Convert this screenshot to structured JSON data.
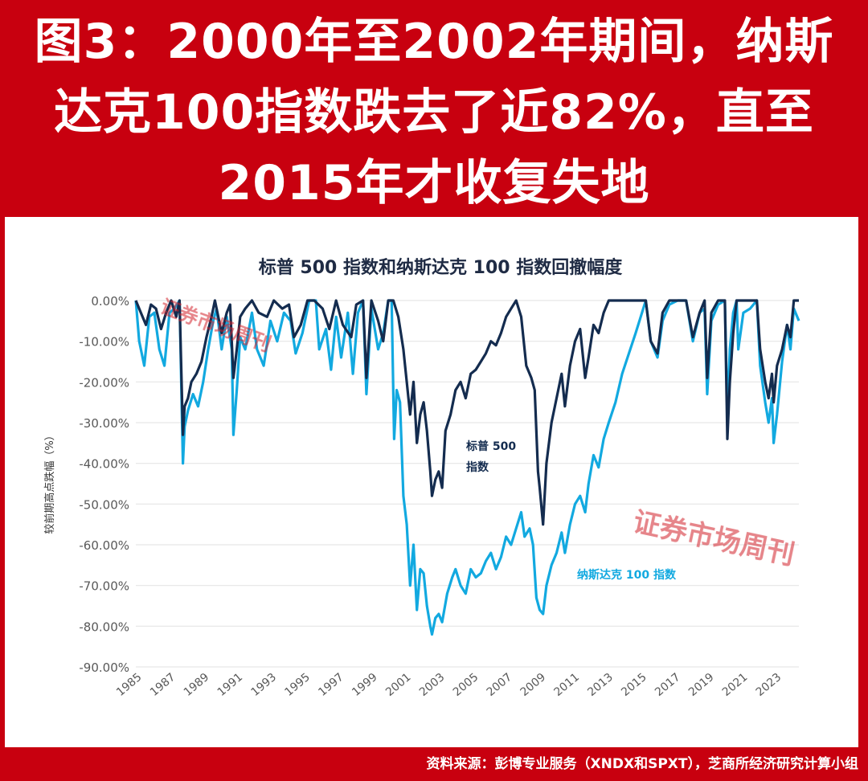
{
  "headline": {
    "line1": "图3：2000年至2002年期间，纳斯",
    "line2": "达克100指数跌去了近82%，直至",
    "line3": "2015年才收复失地"
  },
  "source": "资料来源：彭博专业服务（XNDX和SPXT），芝商所经济研究计算小组",
  "watermark": "证券市场周刊",
  "colors": {
    "frame": "#c8000f",
    "sp500": "#142c4f",
    "nasdaq": "#12a9e0",
    "grid": "#e6e6e6",
    "axis_text": "#595959"
  },
  "chart_data": {
    "type": "line",
    "title": "标普 500 指数和纳斯达克 100 指数回撤幅度",
    "ylabel": "较前期高点跌幅（%）",
    "xlabel": "",
    "ylim": [
      -90,
      0
    ],
    "xlim": [
      1985,
      2024.4
    ],
    "grid": true,
    "y_ticks": [
      "0.00%",
      "-10.00%",
      "-20.00%",
      "-30.00%",
      "-40.00%",
      "-50.00%",
      "-60.00%",
      "-70.00%",
      "-80.00%",
      "-90.00%"
    ],
    "x_ticks": [
      "1985",
      "1987",
      "1989",
      "1991",
      "1993",
      "1995",
      "1997",
      "1999",
      "2001",
      "2003",
      "2005",
      "2007",
      "2009",
      "2011",
      "2013",
      "2015",
      "2017",
      "2019",
      "2021",
      "2023"
    ],
    "series": [
      {
        "name": "标普 500 指数",
        "label_lines": [
          "标普 500",
          "指数"
        ],
        "color": "#142c4f",
        "points": [
          [
            1985.0,
            0
          ],
          [
            1985.3,
            -3
          ],
          [
            1985.6,
            -6
          ],
          [
            1985.9,
            -1
          ],
          [
            1986.2,
            -2
          ],
          [
            1986.5,
            -7
          ],
          [
            1986.8,
            -3
          ],
          [
            1987.1,
            0
          ],
          [
            1987.4,
            -4
          ],
          [
            1987.6,
            0
          ],
          [
            1987.8,
            -33
          ],
          [
            1987.9,
            -26
          ],
          [
            1988.1,
            -24
          ],
          [
            1988.3,
            -20
          ],
          [
            1988.6,
            -18
          ],
          [
            1988.9,
            -15
          ],
          [
            1989.2,
            -9
          ],
          [
            1989.5,
            -4
          ],
          [
            1989.7,
            0
          ],
          [
            1989.9,
            -4
          ],
          [
            1990.1,
            -8
          ],
          [
            1990.4,
            -3
          ],
          [
            1990.6,
            -1
          ],
          [
            1990.8,
            -19
          ],
          [
            1991.0,
            -12
          ],
          [
            1991.2,
            -4
          ],
          [
            1991.5,
            -2
          ],
          [
            1991.9,
            0
          ],
          [
            1992.3,
            -3
          ],
          [
            1992.8,
            -4
          ],
          [
            1993.2,
            0
          ],
          [
            1993.7,
            -2
          ],
          [
            1994.1,
            -1
          ],
          [
            1994.4,
            -9
          ],
          [
            1994.8,
            -6
          ],
          [
            1995.2,
            0
          ],
          [
            1995.6,
            0
          ],
          [
            1996.1,
            -2
          ],
          [
            1996.5,
            -7
          ],
          [
            1996.9,
            0
          ],
          [
            1997.3,
            -6
          ],
          [
            1997.8,
            -9
          ],
          [
            1998.1,
            -1
          ],
          [
            1998.5,
            0
          ],
          [
            1998.7,
            -19
          ],
          [
            1999.0,
            0
          ],
          [
            1999.4,
            -5
          ],
          [
            1999.7,
            -10
          ],
          [
            2000.0,
            0
          ],
          [
            2000.3,
            0
          ],
          [
            2000.6,
            -4
          ],
          [
            2000.9,
            -12
          ],
          [
            2001.1,
            -20
          ],
          [
            2001.3,
            -28
          ],
          [
            2001.5,
            -20
          ],
          [
            2001.7,
            -35
          ],
          [
            2001.9,
            -28
          ],
          [
            2002.1,
            -25
          ],
          [
            2002.3,
            -32
          ],
          [
            2002.5,
            -42
          ],
          [
            2002.6,
            -48
          ],
          [
            2002.8,
            -44
          ],
          [
            2003.0,
            -42
          ],
          [
            2003.2,
            -46
          ],
          [
            2003.4,
            -32
          ],
          [
            2003.7,
            -28
          ],
          [
            2004.0,
            -22
          ],
          [
            2004.3,
            -20
          ],
          [
            2004.6,
            -24
          ],
          [
            2004.9,
            -18
          ],
          [
            2005.2,
            -17
          ],
          [
            2005.5,
            -15
          ],
          [
            2005.8,
            -13
          ],
          [
            2006.1,
            -10
          ],
          [
            2006.4,
            -11
          ],
          [
            2006.7,
            -8
          ],
          [
            2007.0,
            -4
          ],
          [
            2007.3,
            -2
          ],
          [
            2007.6,
            0
          ],
          [
            2007.9,
            -4
          ],
          [
            2008.2,
            -16
          ],
          [
            2008.5,
            -19
          ],
          [
            2008.7,
            -22
          ],
          [
            2008.9,
            -42
          ],
          [
            2009.0,
            -46
          ],
          [
            2009.2,
            -55
          ],
          [
            2009.4,
            -40
          ],
          [
            2009.7,
            -30
          ],
          [
            2010.0,
            -24
          ],
          [
            2010.3,
            -18
          ],
          [
            2010.5,
            -26
          ],
          [
            2010.8,
            -16
          ],
          [
            2011.1,
            -10
          ],
          [
            2011.4,
            -7
          ],
          [
            2011.7,
            -19
          ],
          [
            2011.9,
            -14
          ],
          [
            2012.2,
            -6
          ],
          [
            2012.5,
            -8
          ],
          [
            2012.8,
            -3
          ],
          [
            2013.1,
            0
          ],
          [
            2013.5,
            0
          ],
          [
            2013.9,
            0
          ],
          [
            2014.3,
            0
          ],
          [
            2014.8,
            0
          ],
          [
            2015.3,
            0
          ],
          [
            2015.6,
            -10
          ],
          [
            2016.0,
            -13
          ],
          [
            2016.3,
            -3
          ],
          [
            2016.7,
            0
          ],
          [
            2017.2,
            0
          ],
          [
            2017.7,
            0
          ],
          [
            2018.1,
            -9
          ],
          [
            2018.5,
            -3
          ],
          [
            2018.8,
            0
          ],
          [
            2018.95,
            -19
          ],
          [
            2019.2,
            -3
          ],
          [
            2019.6,
            0
          ],
          [
            2020.0,
            0
          ],
          [
            2020.15,
            -34
          ],
          [
            2020.3,
            -20
          ],
          [
            2020.5,
            -8
          ],
          [
            2020.7,
            0
          ],
          [
            2021.1,
            0
          ],
          [
            2021.5,
            0
          ],
          [
            2021.9,
            0
          ],
          [
            2022.1,
            -12
          ],
          [
            2022.4,
            -20
          ],
          [
            2022.6,
            -24
          ],
          [
            2022.8,
            -18
          ],
          [
            2022.9,
            -25
          ],
          [
            2023.1,
            -16
          ],
          [
            2023.4,
            -12
          ],
          [
            2023.7,
            -6
          ],
          [
            2023.9,
            -9
          ],
          [
            2024.1,
            0
          ],
          [
            2024.4,
            0
          ]
        ]
      },
      {
        "name": "纳斯达克 100 指数",
        "label_lines": [
          "纳斯达克 100 指数"
        ],
        "color": "#12a9e0",
        "points": [
          [
            1985.0,
            0
          ],
          [
            1985.2,
            -10
          ],
          [
            1985.5,
            -16
          ],
          [
            1985.8,
            -4
          ],
          [
            1986.1,
            -3
          ],
          [
            1986.4,
            -12
          ],
          [
            1986.7,
            -16
          ],
          [
            1987.0,
            -3
          ],
          [
            1987.3,
            -2
          ],
          [
            1987.6,
            0
          ],
          [
            1987.8,
            -40
          ],
          [
            1987.9,
            -31
          ],
          [
            1988.1,
            -27
          ],
          [
            1988.4,
            -23
          ],
          [
            1988.7,
            -26
          ],
          [
            1989.0,
            -20
          ],
          [
            1989.3,
            -12
          ],
          [
            1989.6,
            -5
          ],
          [
            1989.8,
            -2
          ],
          [
            1990.1,
            -12
          ],
          [
            1990.4,
            -4
          ],
          [
            1990.7,
            -12
          ],
          [
            1990.8,
            -33
          ],
          [
            1991.0,
            -22
          ],
          [
            1991.2,
            -9
          ],
          [
            1991.5,
            -12
          ],
          [
            1991.9,
            -3
          ],
          [
            1992.2,
            -12
          ],
          [
            1992.6,
            -16
          ],
          [
            1993.0,
            -5
          ],
          [
            1993.4,
            -10
          ],
          [
            1993.8,
            -3
          ],
          [
            1994.2,
            -5
          ],
          [
            1994.5,
            -13
          ],
          [
            1994.9,
            -8
          ],
          [
            1995.3,
            0
          ],
          [
            1995.7,
            0
          ],
          [
            1995.9,
            -12
          ],
          [
            1996.3,
            -7
          ],
          [
            1996.6,
            -17
          ],
          [
            1996.9,
            -4
          ],
          [
            1997.2,
            -14
          ],
          [
            1997.6,
            -3
          ],
          [
            1997.9,
            -18
          ],
          [
            1998.2,
            -3
          ],
          [
            1998.5,
            0
          ],
          [
            1998.7,
            -23
          ],
          [
            1999.0,
            -2
          ],
          [
            1999.4,
            -12
          ],
          [
            1999.7,
            -8
          ],
          [
            2000.0,
            0
          ],
          [
            2000.2,
            0
          ],
          [
            2000.35,
            -34
          ],
          [
            2000.5,
            -22
          ],
          [
            2000.7,
            -25
          ],
          [
            2000.9,
            -48
          ],
          [
            2001.1,
            -55
          ],
          [
            2001.3,
            -70
          ],
          [
            2001.5,
            -60
          ],
          [
            2001.7,
            -76
          ],
          [
            2001.9,
            -66
          ],
          [
            2002.1,
            -67
          ],
          [
            2002.3,
            -75
          ],
          [
            2002.5,
            -80
          ],
          [
            2002.6,
            -82
          ],
          [
            2002.8,
            -78
          ],
          [
            2003.0,
            -77
          ],
          [
            2003.2,
            -79
          ],
          [
            2003.5,
            -72
          ],
          [
            2003.8,
            -68
          ],
          [
            2004.0,
            -66
          ],
          [
            2004.3,
            -70
          ],
          [
            2004.6,
            -72
          ],
          [
            2004.9,
            -66
          ],
          [
            2005.2,
            -68
          ],
          [
            2005.5,
            -67
          ],
          [
            2005.8,
            -64
          ],
          [
            2006.1,
            -62
          ],
          [
            2006.4,
            -66
          ],
          [
            2006.7,
            -63
          ],
          [
            2007.0,
            -58
          ],
          [
            2007.3,
            -60
          ],
          [
            2007.6,
            -56
          ],
          [
            2007.9,
            -52
          ],
          [
            2008.1,
            -58
          ],
          [
            2008.4,
            -56
          ],
          [
            2008.6,
            -60
          ],
          [
            2008.8,
            -73
          ],
          [
            2009.0,
            -76
          ],
          [
            2009.2,
            -77
          ],
          [
            2009.4,
            -70
          ],
          [
            2009.7,
            -65
          ],
          [
            2010.0,
            -62
          ],
          [
            2010.3,
            -57
          ],
          [
            2010.5,
            -62
          ],
          [
            2010.8,
            -55
          ],
          [
            2011.1,
            -50
          ],
          [
            2011.4,
            -48
          ],
          [
            2011.7,
            -52
          ],
          [
            2011.9,
            -45
          ],
          [
            2012.2,
            -38
          ],
          [
            2012.5,
            -41
          ],
          [
            2012.8,
            -34
          ],
          [
            2013.1,
            -30
          ],
          [
            2013.5,
            -25
          ],
          [
            2013.9,
            -18
          ],
          [
            2014.3,
            -13
          ],
          [
            2014.7,
            -8
          ],
          [
            2015.0,
            -4
          ],
          [
            2015.3,
            0
          ],
          [
            2015.6,
            -10
          ],
          [
            2016.0,
            -14
          ],
          [
            2016.3,
            -5
          ],
          [
            2016.7,
            -1
          ],
          [
            2017.2,
            0
          ],
          [
            2017.7,
            0
          ],
          [
            2018.1,
            -10
          ],
          [
            2018.5,
            -3
          ],
          [
            2018.8,
            -2
          ],
          [
            2018.95,
            -23
          ],
          [
            2019.2,
            -5
          ],
          [
            2019.6,
            -1
          ],
          [
            2020.0,
            0
          ],
          [
            2020.15,
            -28
          ],
          [
            2020.3,
            -12
          ],
          [
            2020.5,
            -3
          ],
          [
            2020.7,
            0
          ],
          [
            2020.8,
            -12
          ],
          [
            2021.1,
            -3
          ],
          [
            2021.5,
            -2
          ],
          [
            2021.9,
            0
          ],
          [
            2022.1,
            -16
          ],
          [
            2022.4,
            -25
          ],
          [
            2022.6,
            -30
          ],
          [
            2022.8,
            -24
          ],
          [
            2022.9,
            -35
          ],
          [
            2023.1,
            -28
          ],
          [
            2023.4,
            -15
          ],
          [
            2023.7,
            -6
          ],
          [
            2023.9,
            -12
          ],
          [
            2024.1,
            -2
          ],
          [
            2024.4,
            -5
          ]
        ]
      }
    ]
  }
}
